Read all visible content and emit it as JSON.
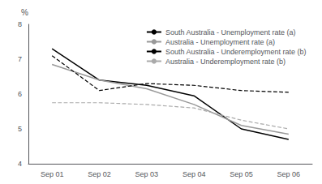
{
  "chart_data": {
    "type": "line",
    "ylabel": "%",
    "categories": [
      "Sep 01",
      "Sep 02",
      "Sep 03",
      "Sep 04",
      "Sep 05",
      "Sep 06"
    ],
    "series": [
      {
        "name": "South Australia - Unemployment rate (a)",
        "color": "#000000",
        "line_style": "solid",
        "values": [
          7.3,
          6.4,
          6.25,
          5.95,
          5.0,
          4.7
        ]
      },
      {
        "name": "Australia - Unemployment rate (a)",
        "color": "#999999",
        "line_style": "solid",
        "values": [
          6.85,
          6.4,
          6.15,
          5.7,
          5.1,
          4.85
        ]
      },
      {
        "name": "South Australia - Underemployment rate (b)",
        "color": "#000000",
        "line_style": "dashed",
        "values": [
          7.1,
          6.1,
          6.3,
          6.25,
          6.1,
          6.05
        ]
      },
      {
        "name": "Australia - Underemployment rate (b)",
        "color": "#aaaaaa",
        "line_style": "dashed",
        "values": [
          5.75,
          5.75,
          5.7,
          5.6,
          5.25,
          5.0
        ]
      }
    ],
    "ylim": [
      4,
      8
    ],
    "yticks": [
      4,
      5,
      6,
      7,
      8
    ],
    "grid": false,
    "legend": "upper right"
  }
}
